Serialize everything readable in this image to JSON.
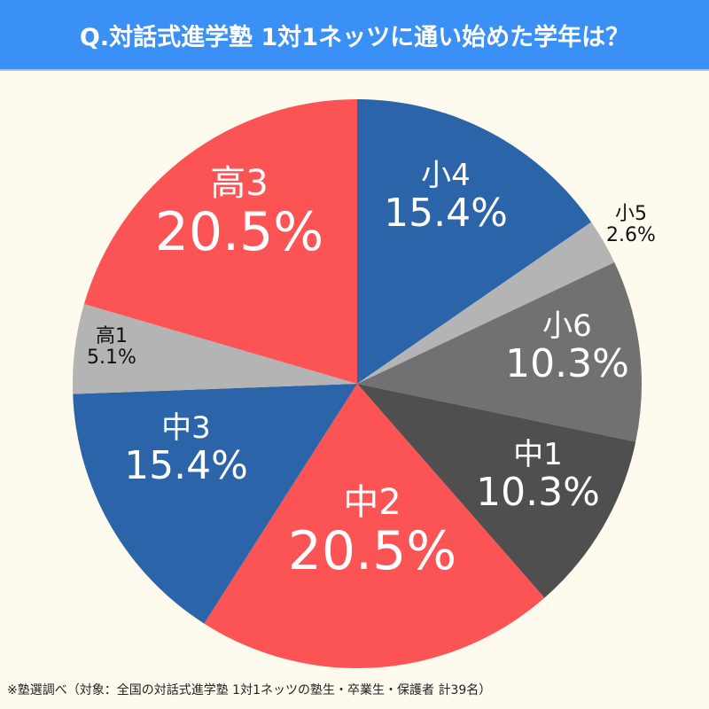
{
  "header": {
    "title": "Q.対話式進学塾 1対1ネッツに通い始めた学年は？"
  },
  "colors": {
    "title_bg": "#3a90f5",
    "background": "#fefaee",
    "red": "#fc5454",
    "blue": "#2b64a8",
    "light_gray": "#b4b4b4",
    "mid_gray": "#717171",
    "dark_gray": "#4f4f4f"
  },
  "chart_data": {
    "type": "pie",
    "title": "Q.対話式進学塾 1対1ネッツに通い始めた学年は？",
    "start_angle": "top (12 o'clock)",
    "direction": "clockwise",
    "categories": [
      "小4",
      "小5",
      "小6",
      "中1",
      "中2",
      "中3",
      "高1",
      "高3"
    ],
    "values": [
      15.4,
      2.6,
      10.3,
      10.3,
      20.5,
      15.4,
      5.1,
      20.5
    ],
    "labels": [
      "15.4%",
      "2.6%",
      "10.3%",
      "10.3%",
      "20.5%",
      "15.4%",
      "5.1%",
      "20.5%"
    ],
    "colors": [
      "#2b64a8",
      "#b4b4b4",
      "#717171",
      "#4f4f4f",
      "#fc5454",
      "#2b64a8",
      "#b4b4b4",
      "#fc5454"
    ],
    "total_respondents": 39,
    "source_note": "※塾選調べ（対象：全国の対話式進学塾 1対1ネッツの塾生・卒業生・保護者 計39名）"
  },
  "labels": [
    {
      "cat": "小4",
      "pct": "15.4%"
    },
    {
      "cat": "小5",
      "pct": "2.6%"
    },
    {
      "cat": "小6",
      "pct": "10.3%"
    },
    {
      "cat": "中1",
      "pct": "10.3%"
    },
    {
      "cat": "中2",
      "pct": "20.5%"
    },
    {
      "cat": "中3",
      "pct": "15.4%"
    },
    {
      "cat": "高1",
      "pct": "5.1%"
    },
    {
      "cat": "高3",
      "pct": "20.5%"
    }
  ],
  "footer": {
    "note": "※塾選調べ（対象：全国の対話式進学塾 1対1ネッツの塾生・卒業生・保護者 計39名）"
  }
}
